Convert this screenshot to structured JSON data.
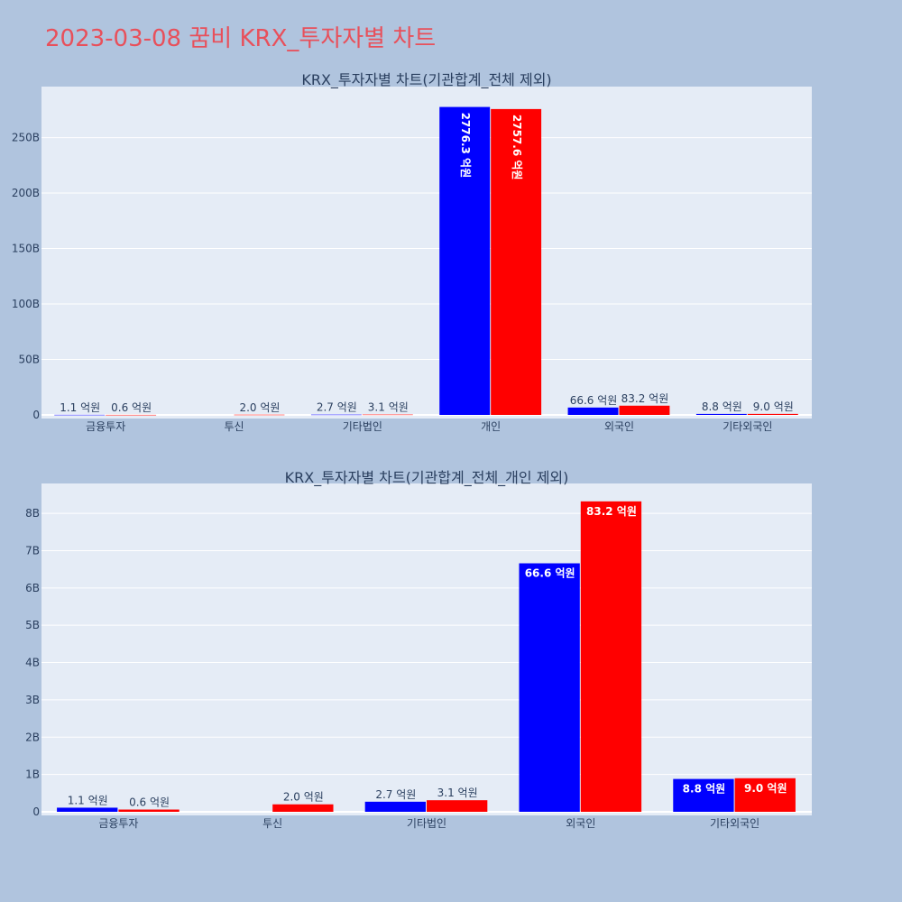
{
  "title": "2023-03-08 꿈비 KRX_투자자별 차트",
  "colors": {
    "bg": "#b0c4de",
    "plot_bg": "#e5ecf6",
    "series1": "#0000ff",
    "series2": "#ff0000",
    "title": "#e8505b"
  },
  "chart_data": [
    {
      "type": "bar",
      "title": "KRX_투자자별 차트(기관합계_전체 제외)",
      "categories": [
        "금융투자",
        "투신",
        "기타법인",
        "개인",
        "외국인",
        "기타외국인"
      ],
      "series": [
        {
          "values": [
            110000000,
            null,
            270000000,
            277630000000,
            6660000000,
            880000000
          ],
          "labels": [
            "1.1 억원",
            "",
            "2.7 억원",
            "2776.3 억원",
            "66.6 억원",
            "8.8 억원"
          ]
        },
        {
          "values": [
            60000000,
            200000000,
            310000000,
            275760000000,
            8320000000,
            900000000
          ],
          "labels": [
            "0.6 억원",
            "2.0 억원",
            "3.1 억원",
            "2757.6 억원",
            "83.2 억원",
            "9.0 억원"
          ]
        }
      ],
      "ylim": [
        0,
        296000000000
      ],
      "yticks": [
        0,
        50000000000,
        100000000000,
        150000000000,
        200000000000,
        250000000000
      ],
      "ytick_labels": [
        "0",
        "50B",
        "100B",
        "150B",
        "200B",
        "250B"
      ],
      "grid": true
    },
    {
      "type": "bar",
      "title": "KRX_투자자별 차트(기관합계_전체_개인 제외)",
      "categories": [
        "금융투자",
        "투신",
        "기타법인",
        "외국인",
        "기타외국인"
      ],
      "series": [
        {
          "values": [
            110000000,
            null,
            270000000,
            6660000000,
            880000000
          ],
          "labels": [
            "1.1 억원",
            "",
            "2.7 억원",
            "66.6 억원",
            "8.8 억원"
          ]
        },
        {
          "values": [
            60000000,
            200000000,
            310000000,
            8320000000,
            900000000
          ],
          "labels": [
            "0.6 억원",
            "2.0 억원",
            "3.1 억원",
            "83.2 억원",
            "9.0 억원"
          ]
        }
      ],
      "ylim": [
        0,
        8800000000
      ],
      "yticks": [
        0,
        1000000000,
        2000000000,
        3000000000,
        4000000000,
        5000000000,
        6000000000,
        7000000000,
        8000000000
      ],
      "ytick_labels": [
        "0",
        "1B",
        "2B",
        "3B",
        "4B",
        "5B",
        "6B",
        "7B",
        "8B"
      ],
      "grid": true
    }
  ]
}
